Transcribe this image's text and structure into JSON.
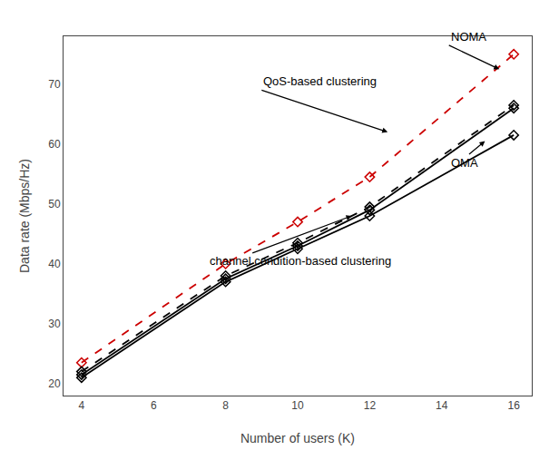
{
  "chart_data": {
    "type": "line",
    "x": [
      4,
      8,
      10,
      12,
      16
    ],
    "series": [
      {
        "color": "#cc0000",
        "line_style": "dashed",
        "marker": "diamond-open",
        "values": [
          23.5,
          40.0,
          47.0,
          54.5,
          75.0
        ]
      },
      {
        "color": "#000000",
        "line_style": "dashed",
        "marker": "diamond-open",
        "values": [
          22.0,
          38.0,
          43.5,
          49.5,
          66.5
        ]
      },
      {
        "color": "#000000",
        "line_style": "solid",
        "marker": "diamond-open",
        "values": [
          21.5,
          37.5,
          43.0,
          49.0,
          66.0
        ]
      },
      {
        "color": "#000000",
        "line_style": "solid",
        "marker": "diamond-open",
        "values": [
          21.0,
          37.0,
          42.5,
          48.0,
          61.5
        ]
      }
    ],
    "xlabel": "Number of users (K)",
    "ylabel": "Data rate (Mbps/Hz)",
    "xlim": [
      3.5,
      16.5
    ],
    "ylim": [
      18,
      78
    ],
    "xticks": [
      4,
      6,
      8,
      10,
      12,
      14,
      16
    ],
    "yticks": [
      20,
      30,
      40,
      50,
      60,
      70
    ],
    "grid": false,
    "annotations": [
      {
        "text": "NOMA",
        "x": 15.6,
        "y": 72.5,
        "text_x": 14.2,
        "text_y": 76.5
      },
      {
        "text": "OMA",
        "x": 15.2,
        "y": 60.5,
        "text_x": 14.2,
        "text_y": 55.5
      },
      {
        "text": "QoS-based clustering",
        "x": 12.5,
        "y": 62.0,
        "text_x": 9.0,
        "text_y": 69.0
      },
      {
        "text": "channel condition-based clustering",
        "x": 11.5,
        "y": 48.0,
        "text_x": 7.5,
        "text_y": 39.0
      }
    ]
  }
}
